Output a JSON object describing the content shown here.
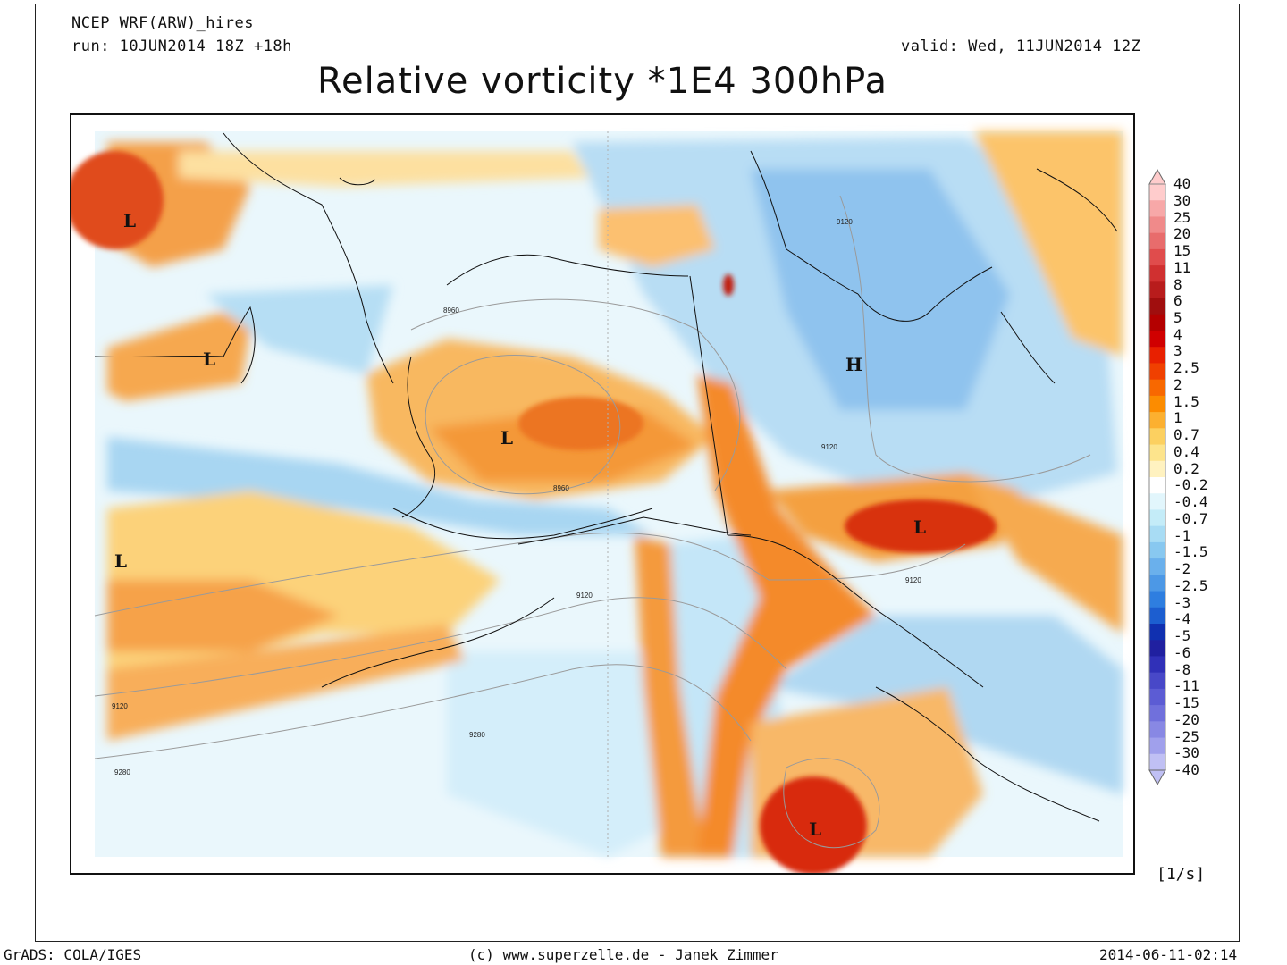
{
  "header": {
    "model": "NCEP WRF(ARW)_hires",
    "run": "run: 10JUN2014 18Z +18h",
    "valid": "valid: Wed, 11JUN2014 12Z",
    "title": "Relative vorticity *1E4 300hPa"
  },
  "map": {
    "pressure_systems": [
      {
        "label": "L"
      },
      {
        "label": "L"
      },
      {
        "label": "L"
      },
      {
        "label": "L"
      },
      {
        "label": "L"
      },
      {
        "label": "L"
      },
      {
        "label": "H"
      }
    ],
    "contour_labels": [
      "9120",
      "8960",
      "8960",
      "9120",
      "9120",
      "9120",
      "9120",
      "9280",
      "9280"
    ]
  },
  "legend": {
    "levels": [
      "40",
      "30",
      "25",
      "20",
      "15",
      "11",
      "8",
      "6",
      "5",
      "4",
      "3",
      "2.5",
      "2",
      "1.5",
      "1",
      "0.7",
      "0.4",
      "0.2",
      "-0.2",
      "-0.4",
      "-0.7",
      "-1",
      "-1.5",
      "-2",
      "-2.5",
      "-3",
      "-4",
      "-5",
      "-6",
      "-8",
      "-11",
      "-15",
      "-20",
      "-25",
      "-30",
      "-40"
    ],
    "colors": [
      "#ffcccc",
      "#f7a8a8",
      "#f08a8a",
      "#e86c6c",
      "#e04c4c",
      "#d03030",
      "#b81c1c",
      "#a00e0e",
      "#b40000",
      "#d00000",
      "#e82000",
      "#f04000",
      "#f86800",
      "#fc8c00",
      "#fcb030",
      "#fcd060",
      "#fde48c",
      "#fff2c0",
      "#ffffff",
      "#e2f6fc",
      "#c4ecf8",
      "#a8dcf4",
      "#88c8f0",
      "#6ab0ec",
      "#4c98e6",
      "#2e7ee0",
      "#1c5ed0",
      "#1030b0",
      "#2020a0",
      "#3030b8",
      "#4848c8",
      "#5c5cd4",
      "#7070dc",
      "#8888e4",
      "#a0a0ec",
      "#c0c0f4"
    ],
    "units": "[1/s]"
  },
  "footer": {
    "left": "GrADS: COLA/IGES",
    "center": "(c) www.superzelle.de - Janek Zimmer",
    "right": "2014-06-11-02:14"
  }
}
